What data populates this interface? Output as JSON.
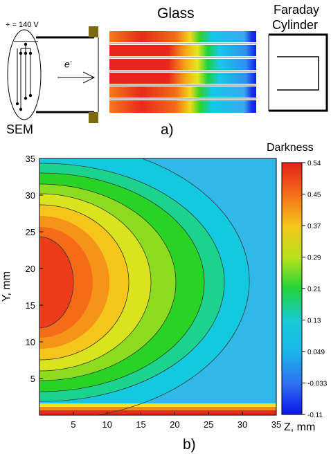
{
  "panel_a": {
    "voltage_label": "+ = 140 V",
    "source_label": "SEM",
    "electron_label": "e",
    "electron_superscript": "-",
    "glass_label": "Glass",
    "detector_label_line1": "Faraday",
    "detector_label_line2": "Cylinder",
    "caption": "a)"
  },
  "panel_b": {
    "caption": "b)",
    "colorbar_title": "Darkness",
    "colorbar_ticks": [
      "0.54",
      "0.45",
      "0.37",
      "0.29",
      "0.21",
      "0.13",
      "0.049",
      "-0.033",
      "-0.11"
    ],
    "x_axis_label": "Z, mm",
    "y_axis_label": "Y, mm",
    "x_ticks": [
      "5",
      "10",
      "15",
      "20",
      "25",
      "30",
      "35"
    ],
    "y_ticks": [
      "35",
      "30",
      "25",
      "20",
      "15",
      "10",
      "5"
    ]
  },
  "chart_data": {
    "type": "heatmap",
    "title": "",
    "xlabel": "Z, mm",
    "ylabel": "Y, mm",
    "xlim": [
      0,
      35
    ],
    "ylim": [
      0,
      35
    ],
    "colorbar_label": "Darkness",
    "colorbar_range": [
      -0.11,
      0.54
    ],
    "peak_location": {
      "z": 3,
      "y": 18
    },
    "peak_value": 0.54
  },
  "colors": {
    "frame": "#000000",
    "bracket": "#7d6a12",
    "red": "#e8261c",
    "orange": "#f77b13",
    "yellow": "#f2e61c",
    "green": "#29d321",
    "cyan": "#17c8e6",
    "light_blue": "#3aa9ee",
    "blue": "#0d1ce8"
  }
}
